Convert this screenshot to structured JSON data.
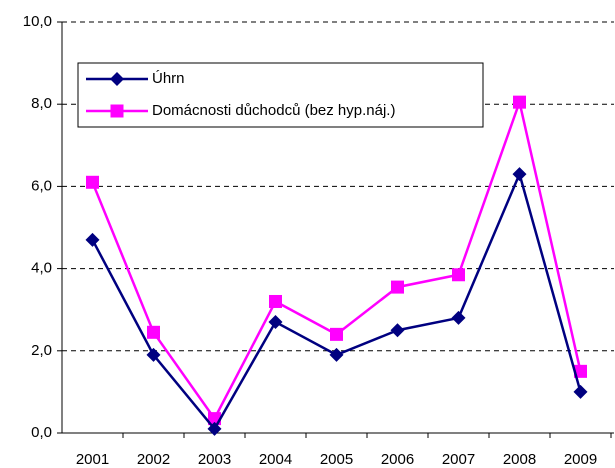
{
  "chart_data": {
    "type": "line",
    "categories": [
      "2001",
      "2002",
      "2003",
      "2004",
      "2005",
      "2006",
      "2007",
      "2008",
      "2009"
    ],
    "series": [
      {
        "name": "Úhrn",
        "color": "#000080",
        "marker": "diamond",
        "values": [
          4.7,
          1.9,
          0.1,
          2.7,
          1.9,
          2.5,
          2.8,
          6.3,
          1.0
        ]
      },
      {
        "name": "Domácnosti důchodců (bez hyp.náj.)",
        "color": "#ff00ff",
        "marker": "square",
        "values": [
          6.1,
          2.45,
          0.35,
          3.2,
          2.4,
          3.55,
          3.85,
          8.05,
          1.5
        ]
      }
    ],
    "ylim": [
      0,
      10
    ],
    "yticks": [
      {
        "value": 0,
        "label": "0,0"
      },
      {
        "value": 2,
        "label": "2,0"
      },
      {
        "value": 4,
        "label": "4,0"
      },
      {
        "value": 6,
        "label": "6,0"
      },
      {
        "value": 8,
        "label": "8,0"
      },
      {
        "value": 10,
        "label": "10,0"
      }
    ],
    "grid": true,
    "legend": "upper left"
  }
}
